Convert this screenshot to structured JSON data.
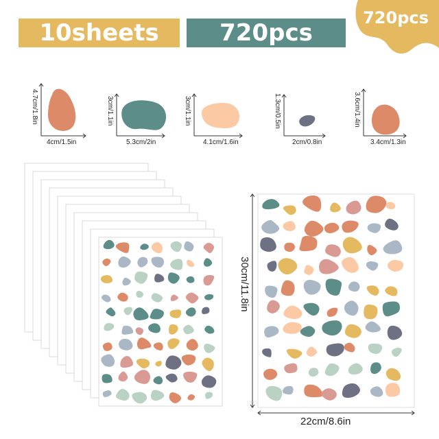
{
  "banner": {
    "sheets": "10sheets",
    "pieces": "720pcs",
    "badge": "720pcs"
  },
  "colors": {
    "mustard": "#e5b95f",
    "teal": "#5d8d88",
    "terracotta": "#dd8a68",
    "peach": "#fbc9a3",
    "slate": "#6e7183",
    "sage": "#b9d2c4",
    "blush": "#d89a92",
    "lightblue": "#aab8c5"
  },
  "dimensions": [
    {
      "height": "4.7cm/1.8in",
      "width": "4cm/1.5in"
    },
    {
      "height": "3cm/1.1in",
      "width": "5.3cm/2in"
    },
    {
      "height": "3cm/1.1in",
      "width": "4.1cm/1.6in"
    },
    {
      "height": "1.3cm/0.5in",
      "width": "2cm/0.8in"
    },
    {
      "height": "3.6cm/1.4in",
      "width": "3.4cm/1.3in"
    }
  ],
  "sheet": {
    "height": "30cm/11.8in",
    "width": "22cm/8.6in",
    "count": 10
  }
}
